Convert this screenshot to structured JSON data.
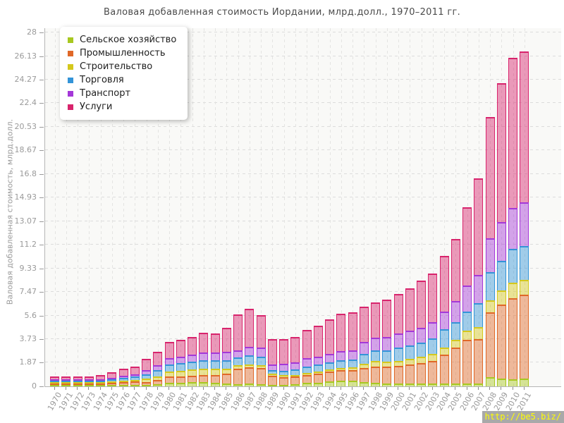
{
  "watermark": {
    "text": "http://be5.biz/",
    "bg": "#a9a9a9",
    "fg": "#ffff00"
  },
  "chart_data": {
    "type": "bar",
    "stacked": true,
    "title": "Валовая добавленная стоимость Иордании, млрд.долл., 1970–2011 гг.",
    "ylabel": "Валовая добавленная стоимость, млрд.долл.",
    "xlabel": "",
    "ylim": [
      0,
      28
    ],
    "ytick_labels": [
      "0",
      "1.87",
      "3.73",
      "5.6",
      "7.47",
      "9.33",
      "11.2",
      "13.07",
      "14.93",
      "16.8",
      "18.67",
      "20.53",
      "22.4",
      "24.27",
      "26.13",
      "28"
    ],
    "grid": "dashed horizontal and vertical",
    "legend_position": "top-left inside",
    "plot_bg": "#f9f9f7",
    "categories": [
      "1970",
      "1971",
      "1972",
      "1973",
      "1974",
      "1975",
      "1976",
      "1977",
      "1978",
      "1979",
      "1980",
      "1981",
      "1982",
      "1983",
      "1984",
      "1985",
      "1986",
      "1987",
      "1988",
      "1989",
      "1990",
      "1991",
      "1992",
      "1993",
      "1994",
      "1995",
      "1996",
      "1997",
      "1998",
      "1999",
      "2000",
      "2001",
      "2002",
      "2003",
      "2004",
      "2005",
      "2006",
      "2007",
      "2008",
      "2009",
      "2010",
      "2011"
    ],
    "series": [
      {
        "name": "Сельское хозяйство",
        "color": "#a8c820",
        "values": [
          0.04,
          0.04,
          0.05,
          0.05,
          0.06,
          0.08,
          0.1,
          0.11,
          0.12,
          0.18,
          0.26,
          0.29,
          0.32,
          0.32,
          0.3,
          0.25,
          0.17,
          0.22,
          0.17,
          0.1,
          0.11,
          0.17,
          0.3,
          0.26,
          0.39,
          0.45,
          0.45,
          0.35,
          0.3,
          0.25,
          0.2,
          0.2,
          0.2,
          0.2,
          0.2,
          0.2,
          0.25,
          0.25,
          0.73,
          0.61,
          0.56,
          0.61
        ]
      },
      {
        "name": "Промышленность",
        "color": "#e06828",
        "values": [
          0.07,
          0.07,
          0.08,
          0.08,
          0.12,
          0.18,
          0.25,
          0.3,
          0.22,
          0.3,
          0.52,
          0.52,
          0.53,
          0.59,
          0.62,
          0.77,
          1.24,
          1.3,
          1.3,
          0.75,
          0.62,
          0.61,
          0.61,
          0.74,
          0.76,
          0.83,
          0.85,
          1.1,
          1.25,
          1.3,
          1.4,
          1.51,
          1.64,
          1.82,
          2.33,
          2.87,
          3.45,
          3.49,
          5.13,
          5.86,
          6.41,
          6.64
        ]
      },
      {
        "name": "Строительство",
        "color": "#d4c81c",
        "values": [
          0.02,
          0.02,
          0.02,
          0.03,
          0.03,
          0.05,
          0.08,
          0.1,
          0.25,
          0.33,
          0.41,
          0.44,
          0.47,
          0.5,
          0.48,
          0.4,
          0.25,
          0.23,
          0.22,
          0.12,
          0.15,
          0.13,
          0.15,
          0.16,
          0.18,
          0.19,
          0.2,
          0.35,
          0.45,
          0.42,
          0.4,
          0.45,
          0.5,
          0.56,
          0.55,
          0.63,
          0.7,
          0.96,
          0.94,
          1.11,
          1.23,
          1.17
        ]
      },
      {
        "name": "Торговля",
        "color": "#3394d8",
        "values": [
          0.07,
          0.07,
          0.08,
          0.08,
          0.1,
          0.15,
          0.2,
          0.24,
          0.35,
          0.45,
          0.52,
          0.57,
          0.62,
          0.67,
          0.68,
          0.66,
          0.61,
          0.7,
          0.65,
          0.31,
          0.37,
          0.43,
          0.5,
          0.56,
          0.58,
          0.59,
          0.6,
          0.75,
          0.85,
          0.9,
          1.05,
          1.07,
          1.12,
          1.21,
          1.42,
          1.4,
          1.5,
          1.9,
          2.24,
          2.35,
          2.68,
          2.68
        ]
      },
      {
        "name": "Транспорт",
        "color": "#a438d8",
        "values": [
          0.05,
          0.05,
          0.05,
          0.06,
          0.06,
          0.1,
          0.14,
          0.17,
          0.37,
          0.42,
          0.5,
          0.52,
          0.55,
          0.6,
          0.62,
          0.65,
          0.59,
          0.69,
          0.71,
          0.43,
          0.53,
          0.54,
          0.65,
          0.63,
          0.68,
          0.71,
          0.75,
          0.95,
          1.0,
          1.02,
          1.12,
          1.16,
          1.17,
          1.3,
          1.43,
          1.67,
          2.1,
          2.2,
          2.67,
          3.07,
          3.23,
          3.46
        ]
      },
      {
        "name": "Услуги",
        "color": "#d8246c",
        "values": [
          0.2,
          0.21,
          0.22,
          0.23,
          0.3,
          0.44,
          0.56,
          0.64,
          0.86,
          1.05,
          1.3,
          1.36,
          1.4,
          1.54,
          1.5,
          1.9,
          2.84,
          2.99,
          2.58,
          2.03,
          1.93,
          2.02,
          2.25,
          2.46,
          2.72,
          2.98,
          3.0,
          2.8,
          2.78,
          2.97,
          3.13,
          3.36,
          3.73,
          3.81,
          4.37,
          4.88,
          6.17,
          7.65,
          9.59,
          11.0,
          11.89,
          11.94
        ]
      }
    ]
  }
}
